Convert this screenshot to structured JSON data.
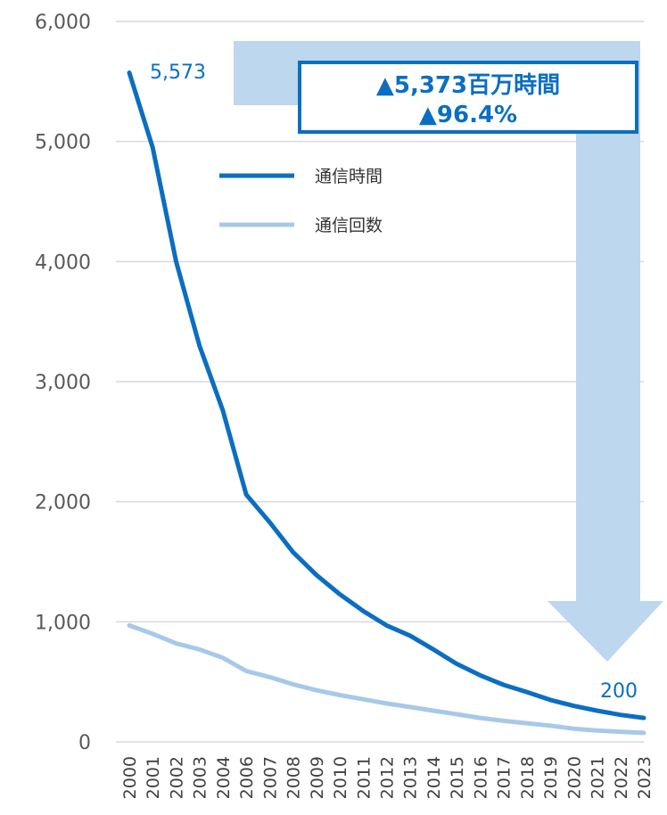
{
  "chart_data": {
    "type": "line",
    "x": [
      "2000",
      "2001",
      "2002",
      "2003",
      "2004",
      "2006",
      "2007",
      "2008",
      "2009",
      "2010",
      "2011",
      "2012",
      "2013",
      "2014",
      "2015",
      "2016",
      "2017",
      "2018",
      "2019",
      "2020",
      "2021",
      "2022",
      "2023"
    ],
    "series": [
      {
        "name": "通信時間",
        "color": "#0b6ec2",
        "values": [
          5573,
          4950,
          4000,
          3300,
          2760,
          2060,
          1830,
          1580,
          1390,
          1230,
          1090,
          970,
          885,
          770,
          650,
          555,
          475,
          415,
          350,
          300,
          260,
          225,
          200
        ]
      },
      {
        "name": "通信回数",
        "color": "#a7c9e8",
        "values": [
          970,
          900,
          820,
          770,
          700,
          590,
          540,
          480,
          430,
          390,
          355,
          320,
          290,
          260,
          230,
          200,
          175,
          155,
          135,
          110,
          95,
          85,
          75
        ]
      }
    ],
    "ylim": [
      0,
      6000
    ],
    "yticks": [
      0,
      1000,
      2000,
      3000,
      4000,
      5000,
      6000
    ],
    "ytick_labels": [
      "0",
      "1,000",
      "2,000",
      "3,000",
      "4,000",
      "5,000",
      "6,000"
    ],
    "grid": true,
    "legend_position": "upper-middle",
    "annotations": {
      "start_value_label": "5,573",
      "end_value_label": "200",
      "callout_line1": "▲5,373百万時間",
      "callout_line2": "▲96.4%"
    },
    "colors": {
      "arrow": "#bdd7ee",
      "callout_border": "#0b6ec2",
      "callout_text": "#0b6ec2",
      "grid": "#d9d9d9"
    }
  }
}
